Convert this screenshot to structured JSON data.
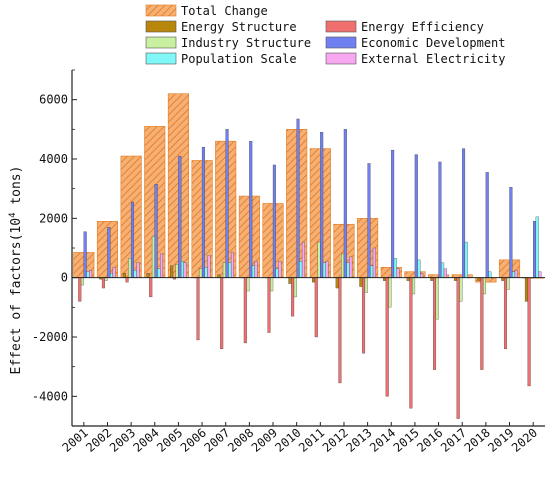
{
  "chart_data": {
    "type": "bar",
    "ylabel_main": "Effect of factors(10",
    "ylabel_sup": "4",
    "ylabel_tail": " tons)",
    "ylim": [
      -5000,
      7000
    ],
    "yticks": [
      -4000,
      -2000,
      0,
      2000,
      4000,
      6000
    ],
    "grid": false,
    "legend_position": "top",
    "categories": [
      "2001",
      "2002",
      "2003",
      "2004",
      "2005",
      "2006",
      "2007",
      "2008",
      "2009",
      "2010",
      "2011",
      "2012",
      "2013",
      "2014",
      "2015",
      "2016",
      "2017",
      "2018",
      "2019",
      "2020"
    ],
    "total": {
      "name": "Total Change",
      "color": "#f4a460",
      "hatch_color": "#e07b20",
      "values": [
        850,
        1900,
        4100,
        5100,
        6200,
        3950,
        4600,
        2750,
        2500,
        5000,
        4350,
        1800,
        2000,
        350,
        200,
        100,
        100,
        -150,
        600,
        0
      ]
    },
    "series": [
      {
        "name": "Energy Structure",
        "color": "#b8860b",
        "values": [
          0,
          -50,
          150,
          150,
          400,
          0,
          100,
          0,
          0,
          -200,
          -150,
          -350,
          -300,
          -100,
          -100,
          -100,
          -100,
          -100,
          -100,
          -800
        ]
      },
      {
        "name": "Energy Efficiency",
        "color": "#f07070",
        "values": [
          -800,
          -350,
          -150,
          -650,
          -50,
          -2100,
          -2400,
          -2200,
          -1850,
          -1300,
          -2000,
          -3550,
          -2550,
          -4000,
          -4400,
          -3100,
          -4750,
          -3100,
          -2400,
          -3650
        ]
      },
      {
        "name": "Industry Structure",
        "color": "#c8f0a0",
        "values": [
          -250,
          -100,
          650,
          1400,
          450,
          300,
          500,
          -450,
          -450,
          -650,
          1200,
          800,
          -500,
          -1000,
          -550,
          -1400,
          -800,
          -550,
          -400,
          0
        ]
      },
      {
        "name": "Economic Development",
        "color": "#7080f0",
        "values": [
          1550,
          1700,
          2550,
          3150,
          4100,
          4400,
          5000,
          4600,
          3800,
          5350,
          4900,
          5000,
          3850,
          4300,
          4150,
          3900,
          4350,
          3550,
          3050,
          1900
        ]
      },
      {
        "name": "Population Scale",
        "color": "#80f8f8",
        "values": [
          200,
          150,
          250,
          300,
          550,
          350,
          500,
          400,
          300,
          550,
          500,
          500,
          400,
          650,
          600,
          500,
          1200,
          200,
          200,
          2050
        ]
      },
      {
        "name": "External Electricity",
        "color": "#f8a8f0",
        "values": [
          250,
          350,
          500,
          800,
          500,
          750,
          850,
          550,
          550,
          1200,
          550,
          700,
          1000,
          300,
          150,
          300,
          0,
          0,
          250,
          200
        ]
      }
    ]
  }
}
